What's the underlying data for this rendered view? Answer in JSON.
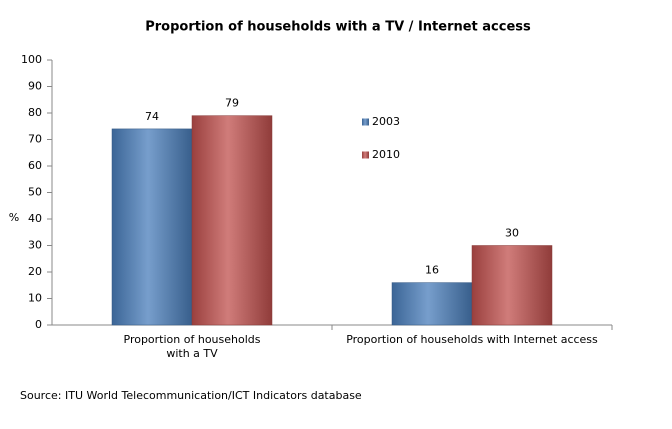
{
  "chart_data": {
    "type": "bar",
    "title": "Proportion of households with a TV / Internet access",
    "y_label": "%",
    "categories": [
      "Proportion of households\nwith a TV",
      "Proportion of households with Internet access"
    ],
    "series": [
      {
        "name": "2003",
        "color": "#4a7ebb",
        "values": [
          74,
          16
        ]
      },
      {
        "name": "2010",
        "color": "#c0504d",
        "values": [
          79,
          30
        ]
      }
    ],
    "ylim": [
      0,
      100
    ],
    "yticks": [
      0,
      10,
      20,
      30,
      40,
      50,
      60,
      70,
      80,
      90,
      100
    ],
    "grid": false,
    "source": "Source:  ITU World Telecommunication/ICT Indicators database"
  }
}
